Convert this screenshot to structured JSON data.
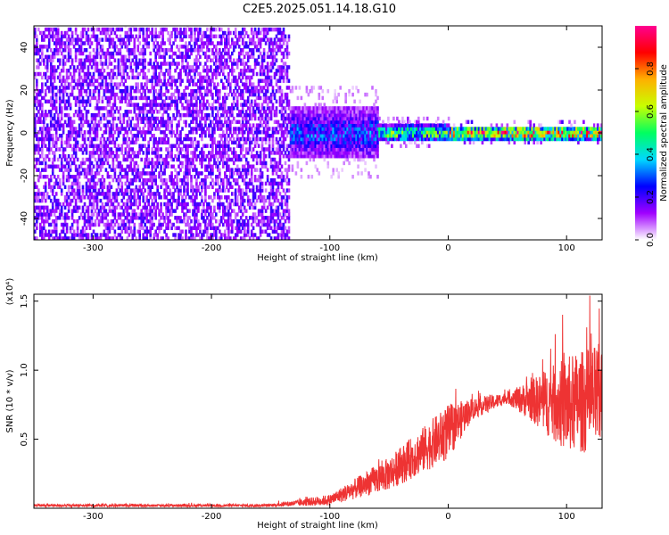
{
  "page": {
    "title": "C2E5.2025.051.14.18.G10"
  },
  "chart_data": [
    {
      "type": "heatmap",
      "id": "spectrogram",
      "xlabel": "Height of straight line (km)",
      "ylabel": "Frequency (Hz)",
      "xlim": [
        -350,
        130
      ],
      "ylim": [
        -50,
        50
      ],
      "x_ticks": [
        -300,
        -200,
        -100,
        0,
        100
      ],
      "y_ticks": [
        -40,
        -20,
        0,
        20,
        40
      ],
      "colorbar": {
        "label": "Normalized spectral amplitude",
        "range": [
          0,
          1
        ],
        "ticks": [
          "0.0",
          "0.2",
          "0.4",
          "0.6",
          "0.8"
        ],
        "colors": [
          "#ffffff",
          "#a000ff",
          "#0000ff",
          "#00d8ff",
          "#00ff60",
          "#c8ff00",
          "#ffb000",
          "#ff0000",
          "#ff0090"
        ]
      },
      "structure": [
        {
          "x_range": [
            -350,
            -135
          ],
          "freq_halfwidth": 50,
          "amplitude": 0.1
        },
        {
          "x_range": [
            -135,
            -60
          ],
          "freq_halfwidth": 12,
          "amplitude": 0.3
        },
        {
          "x_range": [
            -60,
            0
          ],
          "freq_halfwidth": 4,
          "amplitude": 0.55
        },
        {
          "x_range": [
            0,
            130
          ],
          "freq_halfwidth": 3,
          "amplitude": 0.85
        }
      ]
    },
    {
      "type": "line",
      "id": "snr",
      "xlabel": "Height of straight line (km)",
      "ylabel": "SNR (10 * v/v)",
      "multiplier_label": "(x10⁴)",
      "xlim": [
        -350,
        130
      ],
      "ylim": [
        0,
        1.55
      ],
      "x_ticks": [
        -300,
        -200,
        -100,
        0,
        100
      ],
      "y_ticks": [
        "0.5",
        "1.0",
        "1.5"
      ],
      "color": "#ee3333",
      "envelope": [
        {
          "x": -350,
          "y": 0.02,
          "noise": 0.01
        },
        {
          "x": -150,
          "y": 0.02,
          "noise": 0.01
        },
        {
          "x": -100,
          "y": 0.06,
          "noise": 0.04
        },
        {
          "x": -50,
          "y": 0.25,
          "noise": 0.12
        },
        {
          "x": 0,
          "y": 0.55,
          "noise": 0.2
        },
        {
          "x": 20,
          "y": 0.72,
          "noise": 0.08
        },
        {
          "x": 50,
          "y": 0.8,
          "noise": 0.04
        },
        {
          "x": 70,
          "y": 0.78,
          "noise": 0.15
        },
        {
          "x": 100,
          "y": 0.75,
          "noise": 0.35
        },
        {
          "x": 130,
          "y": 0.8,
          "noise": 0.4
        }
      ]
    }
  ]
}
